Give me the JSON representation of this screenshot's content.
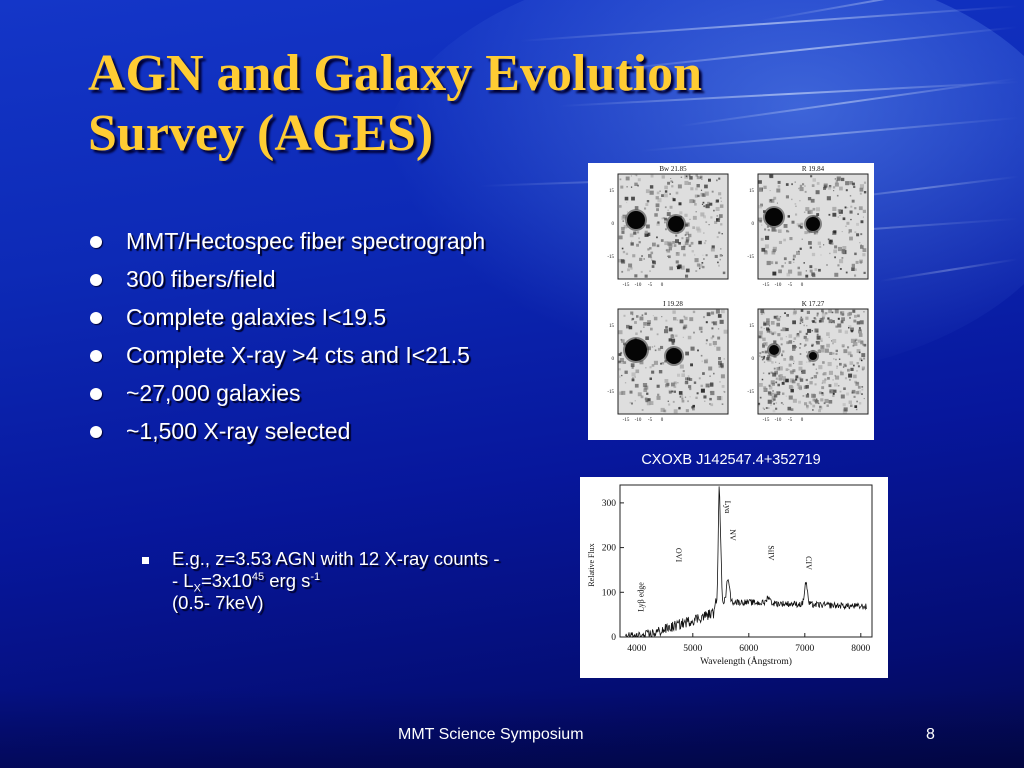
{
  "slide": {
    "title_line1": "AGN and Galaxy Evolution",
    "title_line2": "Survey (AGES)",
    "bullets": [
      "MMT/Hectospec fiber spectrograph",
      "300 fibers/field",
      "Complete galaxies I<19.5",
      "Complete X-ray >4 cts and I<21.5",
      "~27,000 galaxies",
      "~1,500 X-ray selected"
    ],
    "sub_bullet": {
      "pre": "E.g., z=3.53 AGN with 12 X-ray counts - - L",
      "sub": "X",
      "mid": "=3x10",
      "sup1": "45",
      "post": " erg s",
      "sup2": "-1",
      "tail": "(0.5- 7keV)"
    },
    "object_caption": "CXOXB J142547.4+352719",
    "footer_center": "MMT Science Symposium",
    "page_number": "8"
  },
  "image_panels": [
    {
      "label": "Bw 21.85"
    },
    {
      "label": "R 19.84"
    },
    {
      "label": "I 19.28"
    },
    {
      "label": "K 17.27"
    }
  ],
  "image_axis_ticks": [
    "15",
    "0",
    "-15"
  ],
  "image_xaxis_ticks": [
    "-15",
    "-10",
    "-5",
    "0"
  ],
  "spectrum": {
    "xlabel": "Wavelength (Ångstrom)",
    "ylabel": "Relative Flux",
    "x_ticks": [
      "4000",
      "5000",
      "6000",
      "7000",
      "8000"
    ],
    "y_ticks": [
      "300",
      "200",
      "100",
      "0"
    ],
    "line_labels": [
      "Lyα",
      "NV",
      "OVI",
      "Lyβ edge",
      "SiIV",
      "CIV"
    ]
  },
  "colors": {
    "title": "#ffcc33",
    "text": "#ffffff",
    "background_top": "#1436c8",
    "background_bottom": "#03094e"
  }
}
